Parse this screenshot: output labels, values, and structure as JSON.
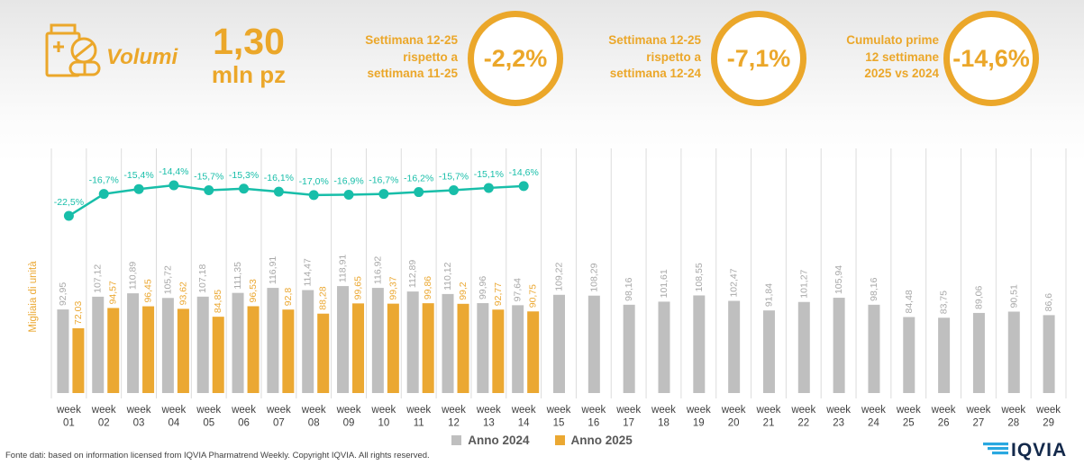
{
  "header": {
    "metric_label": "Volumi",
    "total_value": "1,30",
    "total_unit": "mln pz",
    "accent_color": "#EBA72A",
    "kpis": [
      {
        "label": "Settimana 12-25\nrispetto a\nsettimana 11-25",
        "value": "-2,2%"
      },
      {
        "label": "Settimana 12-25\nrispetto a\nsettimana 12-24",
        "value": "-7,1%"
      },
      {
        "label": "Cumulato prime\n12 settimane\n2025 vs 2024",
        "value": "-14,6%"
      }
    ]
  },
  "chart_data": {
    "type": "bar",
    "title": "",
    "xlabel": "",
    "ylabel": "Migliaia di unità",
    "ylim": [
      0,
      130
    ],
    "grid": "vertical",
    "legend_position": "bottom",
    "categories": [
      "week 01",
      "week 02",
      "week 03",
      "week 04",
      "week 05",
      "week 06",
      "week 07",
      "week 08",
      "week 09",
      "week 10",
      "week 11",
      "week 12",
      "week 13",
      "week 14",
      "week 15",
      "week 16",
      "week 17",
      "week 18",
      "week 19",
      "week 20",
      "week 21",
      "week 22",
      "week 23",
      "week 24",
      "week 25",
      "week 26",
      "week 27",
      "week 28",
      "week 29"
    ],
    "series": [
      {
        "name": "Anno 2024",
        "color": "#BFBFBF",
        "label_color": "#A8A8A8",
        "values": [
          92.95,
          107.12,
          110.89,
          105.72,
          107.18,
          111.35,
          116.91,
          114.47,
          118.91,
          116.92,
          112.89,
          110.12,
          99.96,
          97.64,
          109.22,
          108.29,
          98.16,
          101.61,
          108.55,
          102.47,
          91.84,
          101.27,
          105.94,
          98.16,
          84.48,
          83.75,
          89.06,
          90.51,
          86.6
        ],
        "labels": [
          "92,95",
          "107,12",
          "110,89",
          "105,72",
          "107,18",
          "111,35",
          "116,91",
          "114,47",
          "118,91",
          "116,92",
          "112,89",
          "110,12",
          "99,96",
          "97,64",
          "109,22",
          "108,29",
          "98,16",
          "101,61",
          "108,55",
          "102,47",
          "91,84",
          "101,27",
          "105,94",
          "98,16",
          "84,48",
          "83,75",
          "89,06",
          "90,51",
          "86,6"
        ]
      },
      {
        "name": "Anno 2025",
        "color": "#EBA832",
        "label_color": "#EBA832",
        "values": [
          72.03,
          94.57,
          96.45,
          93.62,
          84.85,
          96.53,
          92.8,
          88.28,
          99.65,
          99.37,
          99.86,
          99.2,
          92.77,
          90.75,
          null,
          null,
          null,
          null,
          null,
          null,
          null,
          null,
          null,
          null,
          null,
          null,
          null,
          null,
          null
        ],
        "labels": [
          "72,03",
          "94,57",
          "96,45",
          "93,62",
          "84,85",
          "96,53",
          "92,8",
          "88,28",
          "99,65",
          "99,37",
          "99,86",
          "99,2",
          "92,77",
          "90,75"
        ]
      }
    ],
    "line_series": {
      "name": "Variazione % 2025 vs 2024",
      "color": "#18BEA9",
      "values": [
        -22.5,
        -16.7,
        -15.4,
        -14.4,
        -15.7,
        -15.3,
        -16.1,
        -17.0,
        -16.9,
        -16.7,
        -16.2,
        -15.7,
        -15.1,
        -14.6
      ],
      "labels": [
        "-22,5%",
        "-16,7%",
        "-15,4%",
        "-14,4%",
        "-15,7%",
        "-15,3%",
        "-16,1%",
        "-17,0%",
        "-16,9%",
        "-16,7%",
        "-16,2%",
        "-15,7%",
        "-15,1%",
        "-14,6%"
      ]
    }
  },
  "legend": {
    "items": [
      {
        "label": "Anno 2024",
        "color": "#BFBFBF"
      },
      {
        "label": "Anno 2025",
        "color": "#EBA832"
      }
    ]
  },
  "footer": {
    "source": "Fonte dati: based on information licensed from IQVIA Pharmatrend Weekly. Copyright IQVIA. All rights reserved.",
    "logo_text": "IQVIA",
    "logo_navy": "#13294B",
    "logo_blue": "#29A8E0"
  }
}
